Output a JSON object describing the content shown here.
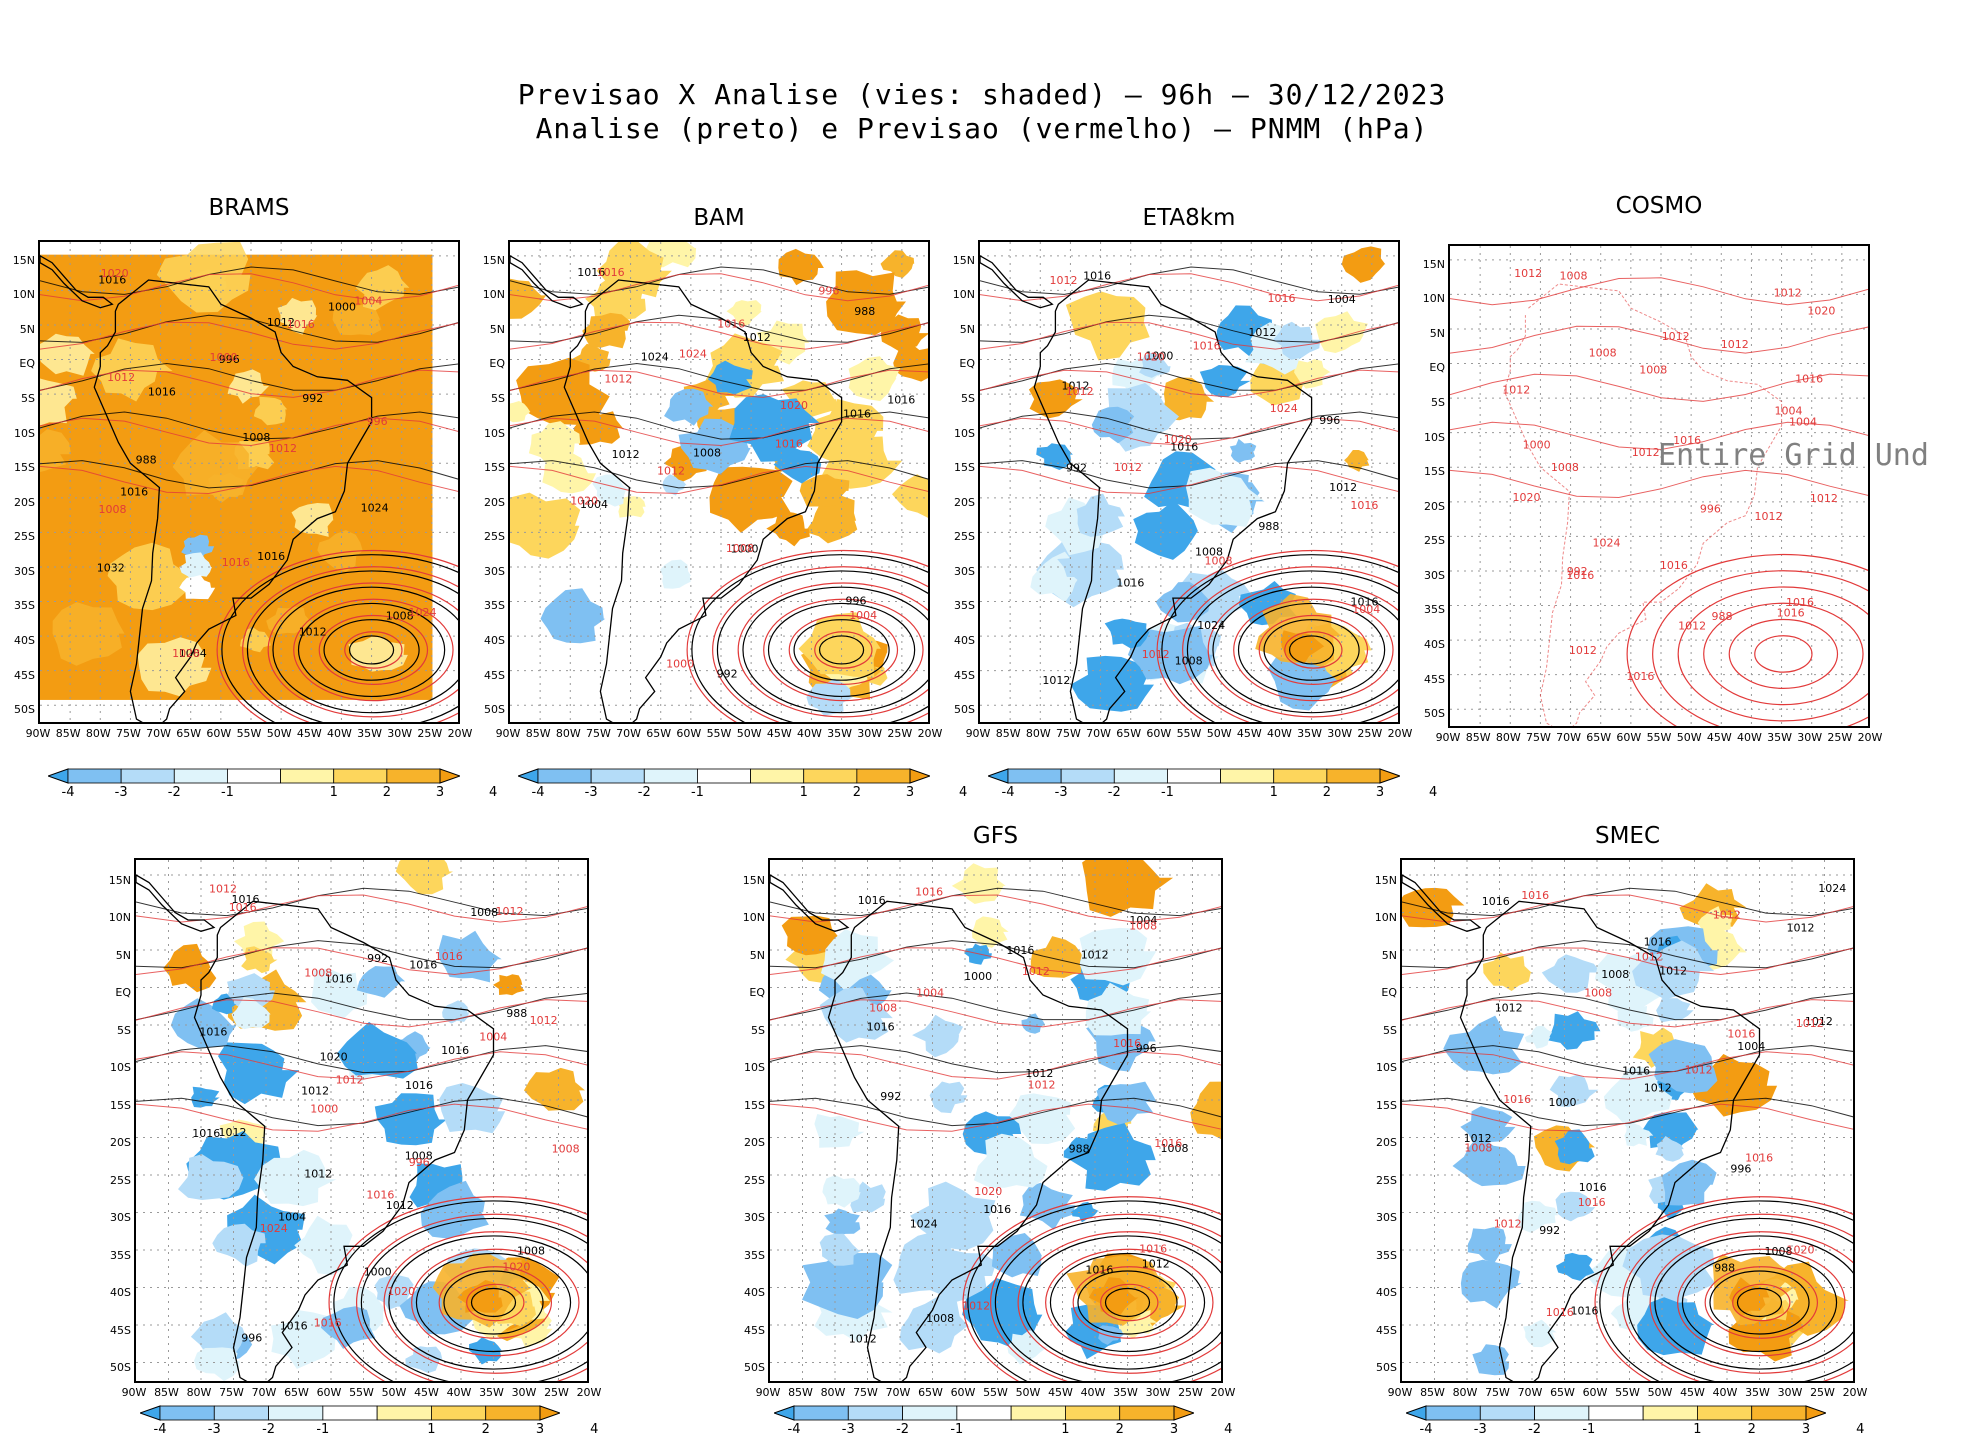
{
  "header": {
    "line1": "Previsao X Analise (vies: shaded) – 96h – 30/12/2023",
    "line2": "Analise (preto) e Previsao (vermelho) – PNMM (hPa)"
  },
  "axes": {
    "lat_labels": [
      "15N",
      "10N",
      "5N",
      "EQ",
      "5S",
      "10S",
      "15S",
      "20S",
      "25S",
      "30S",
      "35S",
      "40S",
      "45S",
      "50S"
    ],
    "lon_labels": [
      "90W",
      "85W",
      "80W",
      "75W",
      "70W",
      "65W",
      "60W",
      "55W",
      "50W",
      "45W",
      "40W",
      "35W",
      "30W",
      "25W",
      "20W"
    ]
  },
  "colorbar": {
    "labels": [
      "-4",
      "-3",
      "-2",
      "-1",
      "1",
      "2",
      "3",
      "4"
    ],
    "colors": [
      "#3ea6ea",
      "#7fc0f2",
      "#b4dcf8",
      "#dff4fb",
      "#ffffff",
      "#fff5a8",
      "#fdd65c",
      "#f7b32b",
      "#f39c12"
    ]
  },
  "colors": {
    "analysis_contour": "#000000",
    "forecast_contour": "#e23a3a",
    "grid": "#9a9a9a"
  },
  "panels": [
    {
      "id": "brams",
      "title": "BRAMS",
      "theme": "warm",
      "labels_black": [
        "1016",
        "1012",
        "1016",
        "1008",
        "1016",
        "1016",
        "1008",
        "1004",
        "1000",
        "996",
        "992",
        "988",
        "1024",
        "1032",
        "1012"
      ],
      "labels_red": [
        "1020",
        "1016",
        "1012",
        "1012",
        "1008",
        "1016",
        "1024",
        "1028",
        "1004",
        "1000",
        "996"
      ]
    },
    {
      "id": "bam",
      "title": "BAM",
      "theme": "yellow",
      "labels_black": [
        "1016",
        "1012",
        "1016",
        "1008",
        "1004",
        "1000",
        "996",
        "992",
        "988",
        "1024",
        "1016",
        "1012"
      ],
      "labels_red": [
        "1016",
        "1016",
        "1012",
        "1016",
        "1020",
        "1008",
        "1004",
        "1000",
        "996",
        "1024",
        "1020",
        "1012"
      ]
    },
    {
      "id": "eta8km",
      "title": "ETA8km",
      "theme": "blue",
      "labels_black": [
        "1016",
        "1012",
        "1012",
        "1016",
        "1012",
        "1008",
        "1016",
        "1008",
        "1004",
        "1000",
        "996",
        "992",
        "988",
        "1016",
        "1024",
        "1012"
      ],
      "labels_red": [
        "1012",
        "1016",
        "1012",
        "1020",
        "1016",
        "1008",
        "1004",
        "1012",
        "1016",
        "1020",
        "1024",
        "1012"
      ]
    },
    {
      "id": "cosmo",
      "title": "COSMO",
      "theme": "red-only",
      "overlay": "Entire Grid Und",
      "labels_black": [],
      "labels_red": [
        "1012",
        "1012",
        "1012",
        "1012",
        "1012",
        "1016",
        "1016",
        "1016",
        "1020",
        "1008",
        "1004",
        "1008",
        "1012",
        "1016",
        "1012",
        "1008",
        "1012",
        "1016",
        "1016",
        "1020",
        "1024",
        "1016",
        "1012",
        "1012",
        "1008",
        "1004",
        "1000",
        "996",
        "992",
        "988"
      ]
    },
    {
      "id": "panel5",
      "title": "",
      "theme": "blue",
      "labels_black": [
        "1016",
        "1016",
        "1016",
        "1016",
        "1012",
        "1012",
        "1008",
        "1016",
        "1008",
        "1016",
        "1016",
        "1012",
        "1008",
        "1004",
        "1000",
        "996",
        "992",
        "988",
        "1020",
        "1016",
        "1012"
      ],
      "labels_red": [
        "1016",
        "1016",
        "1012",
        "1012",
        "1008",
        "1016",
        "1020",
        "1016",
        "1012",
        "1008",
        "1004",
        "1000",
        "996",
        "1024",
        "1020",
        "1012"
      ]
    },
    {
      "id": "gfs",
      "title": "GFS",
      "theme": "blue",
      "labels_black": [
        "1016",
        "1012",
        "1016",
        "1012",
        "1008",
        "1016",
        "1012",
        "1008",
        "1004",
        "1000",
        "996",
        "992",
        "988",
        "1024",
        "1016",
        "1012",
        "1016"
      ],
      "labels_red": [
        "1016",
        "1012",
        "1008",
        "1012",
        "1016",
        "1020",
        "1016",
        "1012",
        "1008",
        "1004",
        "1016"
      ]
    },
    {
      "id": "smec",
      "title": "SMEC",
      "theme": "blue",
      "labels_black": [
        "1016",
        "1012",
        "1012",
        "1012",
        "1012",
        "1016",
        "1008",
        "1016",
        "1012",
        "1008",
        "1004",
        "1000",
        "996",
        "992",
        "988",
        "1024",
        "1016",
        "1012",
        "1016"
      ],
      "labels_red": [
        "1016",
        "1012",
        "1012",
        "1012",
        "1008",
        "1016",
        "1020",
        "1016",
        "1012",
        "1008",
        "1016",
        "1016",
        "1016",
        "1012"
      ]
    }
  ]
}
